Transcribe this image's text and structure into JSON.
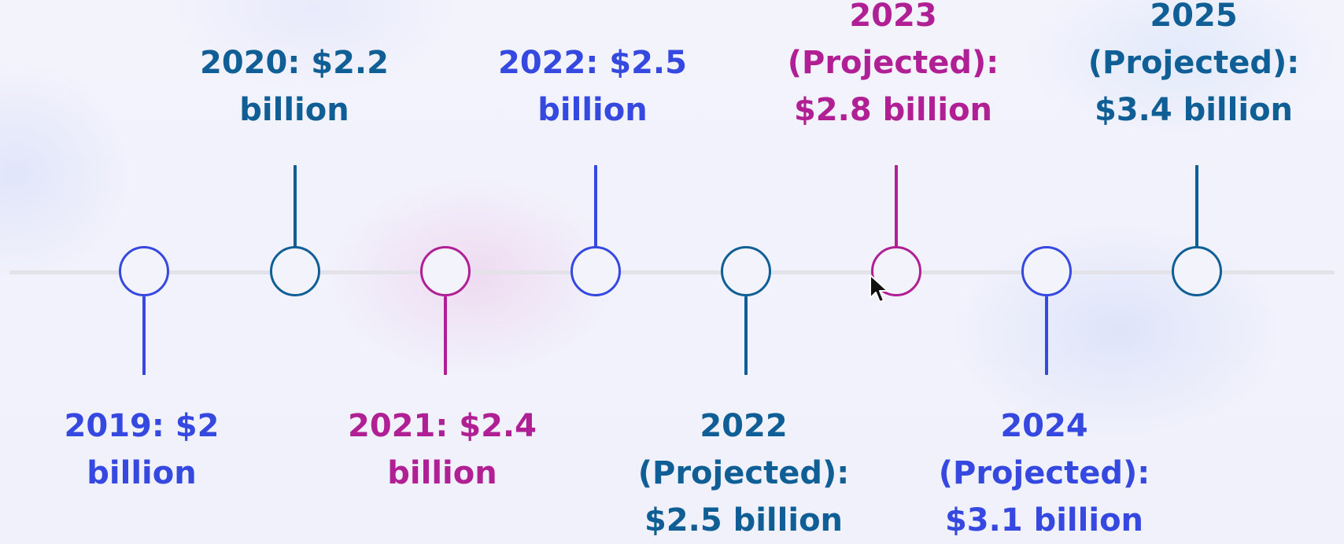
{
  "colors": {
    "blue": "#3548e0",
    "teal": "#0f5f96",
    "magenta": "#b01f94",
    "axis": "#e2e2e8"
  },
  "milestones": [
    {
      "label": "2019: $2 billion",
      "side": "below",
      "color": "#3548e0"
    },
    {
      "label": "2020: $2.2 billion",
      "side": "above",
      "color": "#0f5f96"
    },
    {
      "label": "2021: $2.4 billion",
      "side": "below",
      "color": "#b01f94"
    },
    {
      "label": "2022: $2.5 billion",
      "side": "above",
      "color": "#3548e0"
    },
    {
      "label": "2022 (Projected): $2.5 billion",
      "side": "below",
      "color": "#0f5f96"
    },
    {
      "label": "2023 (Projected): $2.8 billion",
      "side": "above",
      "color": "#b01f94"
    },
    {
      "label": "2024 (Projected): $3.1 billion",
      "side": "below",
      "color": "#3548e0"
    },
    {
      "label": "2025 (Projected): $3.4 billion",
      "side": "above",
      "color": "#0f5f96"
    }
  ],
  "cursor_icon": "mouse-pointer-icon"
}
